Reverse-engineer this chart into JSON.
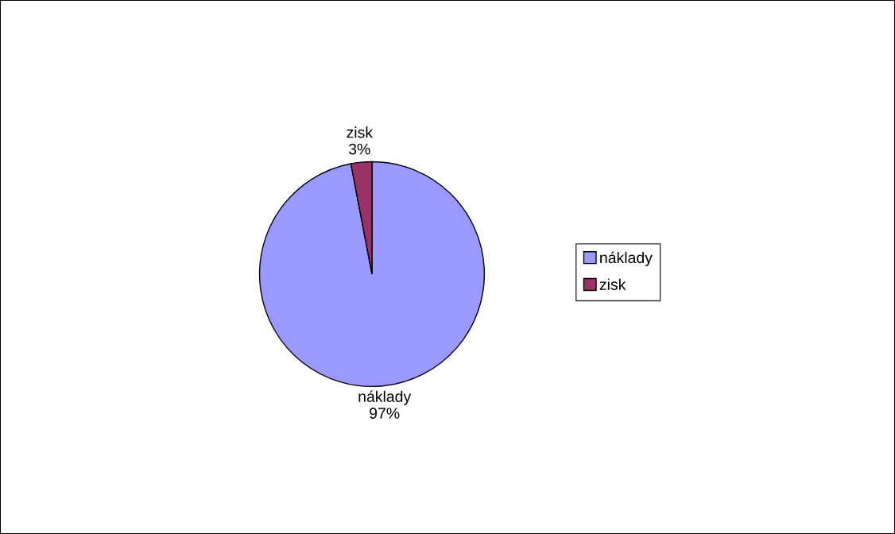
{
  "chart_data": {
    "type": "pie",
    "categories": [
      "náklady",
      "zisk"
    ],
    "values": [
      97,
      3
    ],
    "colors": [
      "#9999ff",
      "#993366"
    ],
    "value_labels": [
      "97%",
      "3%"
    ],
    "legend": "right"
  }
}
